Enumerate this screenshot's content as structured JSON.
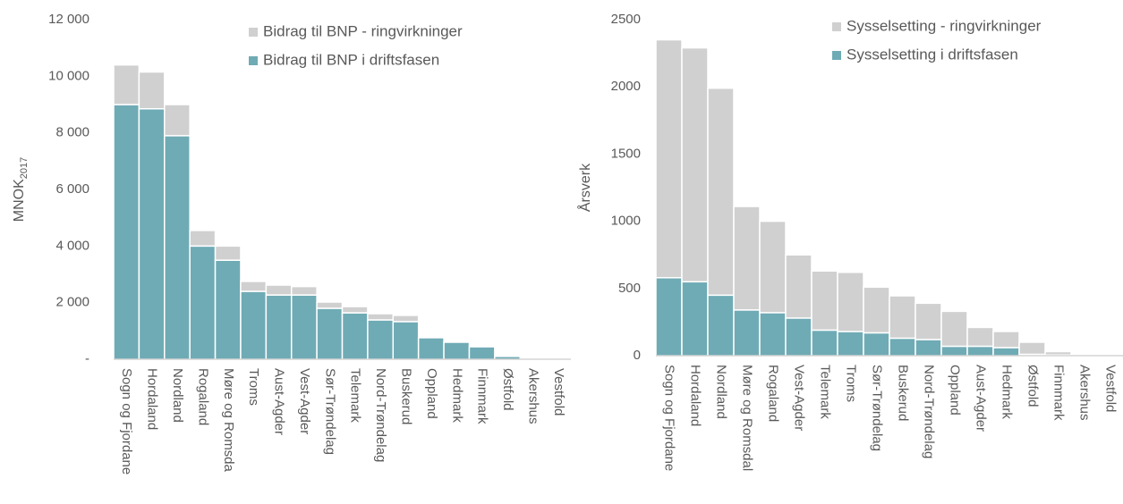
{
  "chart_data": [
    {
      "type": "stacked_bar",
      "ylabel": "MNOK",
      "ylabel_sub": "2017",
      "categories": [
        "Sogn og Fjordane",
        "Hordaland",
        "Nordland",
        "Rogaland",
        "Møre og Romsda",
        "Troms",
        "Aust-Agder",
        "Vest-Agder",
        "Sør-Trøndelag",
        "Telemark",
        "Nord-Trøndelag",
        "Buskerud",
        "Oppland",
        "Hedmark",
        "Finnmark",
        "Østfold",
        "Akershus",
        "Vestfold"
      ],
      "series": [
        {
          "name": "Bidrag til BNP i driftsfasen",
          "color": "#6fabb5",
          "values": [
            9000,
            8850,
            7900,
            4000,
            3500,
            2400,
            2270,
            2270,
            1800,
            1640,
            1390,
            1330,
            760,
            600,
            440,
            100,
            20,
            0
          ]
        },
        {
          "name": "Bidrag til BNP - ringvirkninger",
          "color": "#d0d0d0",
          "values": [
            1400,
            1300,
            1100,
            550,
            500,
            350,
            350,
            300,
            220,
            220,
            220,
            220,
            0,
            0,
            0,
            0,
            0,
            0
          ]
        }
      ],
      "ylim": [
        0,
        12000
      ],
      "yticks": [
        {
          "value": 0,
          "label": "-"
        },
        {
          "value": 2000,
          "label": "2 000"
        },
        {
          "value": 4000,
          "label": "4 000"
        },
        {
          "value": 6000,
          "label": "6 000"
        },
        {
          "value": 8000,
          "label": "8 000"
        },
        {
          "value": 10000,
          "label": "10 000"
        },
        {
          "value": 12000,
          "label": "12 000"
        }
      ],
      "legend": "upper right",
      "grid": false
    },
    {
      "type": "stacked_bar",
      "ylabel": "Årsverk",
      "categories": [
        "Sogn og Fjordane",
        "Hordaland",
        "Nordland",
        "Møre og Romsdal",
        "Rogaland",
        "Vest-Agder",
        "Telemark",
        "Troms",
        "Sør-Trøndelag",
        "Buskerud",
        "Nord-Trøndelag",
        "Oppland",
        "Aust-Agder",
        "Hedmark",
        "Østfold",
        "Finnmark",
        "Akershus",
        "Vestfold"
      ],
      "series": [
        {
          "name": "Sysselsetting i driftsfasen",
          "color": "#6fabb5",
          "values": [
            580,
            550,
            450,
            340,
            320,
            280,
            190,
            180,
            170,
            130,
            120,
            70,
            70,
            60,
            10,
            5,
            2,
            0
          ]
        },
        {
          "name": "Sysselsetting - ringvirkninger",
          "color": "#d0d0d0",
          "values": [
            1770,
            1740,
            1540,
            770,
            680,
            470,
            440,
            440,
            340,
            315,
            270,
            260,
            140,
            120,
            90,
            25,
            3,
            1
          ]
        }
      ],
      "ylim": [
        0,
        2500
      ],
      "yticks": [
        0,
        500,
        1000,
        1500,
        2000,
        2500
      ],
      "legend": "upper right",
      "grid": false
    }
  ]
}
